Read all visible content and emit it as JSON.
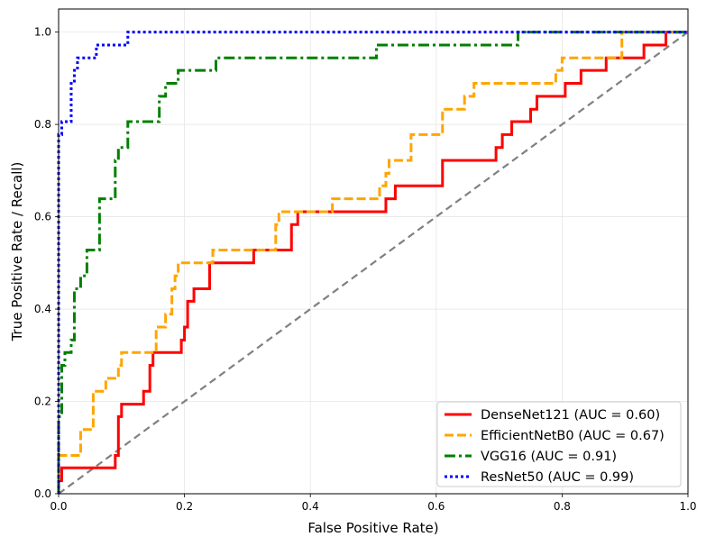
{
  "chart_data": {
    "type": "line",
    "title": "",
    "xlabel": "False Positive Rate)",
    "ylabel": "True Positive Rate / Recall)",
    "xlim": [
      0,
      1
    ],
    "ylim": [
      0,
      1.05
    ],
    "xticks": [
      "0.0",
      "0.2",
      "0.4",
      "0.6",
      "0.8",
      "1.0"
    ],
    "yticks": [
      "0.0",
      "0.2",
      "0.4",
      "0.6",
      "0.8",
      "1.0"
    ],
    "grid": true,
    "legend_position": "lower-right",
    "diagonal": {
      "color": "#808080",
      "style": "dashed",
      "points": [
        [
          0,
          0
        ],
        [
          1,
          1
        ]
      ]
    },
    "series": [
      {
        "name": "DenseNet121 (AUC = 0.60)",
        "color": "#ff0000",
        "style": "solid",
        "x": [
          0,
          0,
          0.005,
          0.005,
          0.045,
          0.045,
          0.09,
          0.09,
          0.095,
          0.095,
          0.1,
          0.1,
          0.135,
          0.135,
          0.145,
          0.145,
          0.15,
          0.15,
          0.195,
          0.195,
          0.2,
          0.2,
          0.205,
          0.205,
          0.215,
          0.215,
          0.24,
          0.24,
          0.31,
          0.31,
          0.37,
          0.37,
          0.38,
          0.38,
          0.39,
          0.39,
          0.52,
          0.52,
          0.535,
          0.535,
          0.61,
          0.61,
          0.695,
          0.695,
          0.705,
          0.705,
          0.72,
          0.72,
          0.735,
          0.735,
          0.75,
          0.75,
          0.76,
          0.76,
          0.805,
          0.805,
          0.815,
          0.815,
          0.83,
          0.83,
          0.87,
          0.87,
          0.93,
          0.93,
          0.965,
          0.965,
          1.0
        ],
        "y": [
          0,
          0.028,
          0.028,
          0.056,
          0.056,
          0.056,
          0.056,
          0.083,
          0.083,
          0.167,
          0.167,
          0.194,
          0.194,
          0.222,
          0.222,
          0.278,
          0.278,
          0.306,
          0.306,
          0.333,
          0.333,
          0.361,
          0.361,
          0.417,
          0.417,
          0.444,
          0.444,
          0.5,
          0.5,
          0.528,
          0.528,
          0.583,
          0.583,
          0.611,
          0.611,
          0.611,
          0.611,
          0.639,
          0.639,
          0.667,
          0.667,
          0.722,
          0.722,
          0.75,
          0.75,
          0.778,
          0.778,
          0.806,
          0.806,
          0.806,
          0.806,
          0.833,
          0.833,
          0.861,
          0.861,
          0.889,
          0.889,
          0.889,
          0.889,
          0.917,
          0.917,
          0.944,
          0.944,
          0.972,
          0.972,
          1.0,
          1.0
        ]
      },
      {
        "name": "EfficientNetB0 (AUC = 0.67)",
        "color": "#ffa500",
        "style": "dashed",
        "x": [
          0,
          0,
          0.035,
          0.035,
          0.055,
          0.055,
          0.075,
          0.075,
          0.095,
          0.095,
          0.1,
          0.1,
          0.155,
          0.155,
          0.17,
          0.17,
          0.18,
          0.18,
          0.185,
          0.185,
          0.19,
          0.19,
          0.245,
          0.245,
          0.345,
          0.345,
          0.35,
          0.35,
          0.435,
          0.435,
          0.51,
          0.51,
          0.52,
          0.52,
          0.525,
          0.525,
          0.56,
          0.56,
          0.61,
          0.61,
          0.645,
          0.645,
          0.66,
          0.66,
          0.79,
          0.79,
          0.8,
          0.8,
          0.895,
          0.895,
          1.0
        ],
        "y": [
          0,
          0.083,
          0.083,
          0.139,
          0.139,
          0.222,
          0.222,
          0.25,
          0.25,
          0.278,
          0.278,
          0.306,
          0.306,
          0.361,
          0.361,
          0.389,
          0.389,
          0.444,
          0.444,
          0.472,
          0.472,
          0.5,
          0.5,
          0.528,
          0.528,
          0.583,
          0.583,
          0.611,
          0.611,
          0.639,
          0.639,
          0.667,
          0.667,
          0.694,
          0.694,
          0.722,
          0.722,
          0.778,
          0.778,
          0.833,
          0.833,
          0.861,
          0.861,
          0.889,
          0.889,
          0.917,
          0.917,
          0.944,
          0.944,
          1.0,
          1.0
        ]
      },
      {
        "name": "VGG16 (AUC = 0.91)",
        "color": "#008000",
        "style": "dashdot",
        "x": [
          0,
          0,
          0.005,
          0.005,
          0.01,
          0.01,
          0.015,
          0.015,
          0.02,
          0.02,
          0.025,
          0.025,
          0.035,
          0.035,
          0.04,
          0.04,
          0.045,
          0.045,
          0.065,
          0.065,
          0.09,
          0.09,
          0.095,
          0.095,
          0.11,
          0.11,
          0.16,
          0.16,
          0.17,
          0.17,
          0.19,
          0.19,
          0.195,
          0.195,
          0.25,
          0.25,
          0.505,
          0.505,
          0.73,
          0.73,
          1.0
        ],
        "y": [
          0,
          0.167,
          0.167,
          0.278,
          0.278,
          0.306,
          0.306,
          0.306,
          0.306,
          0.333,
          0.333,
          0.444,
          0.444,
          0.472,
          0.472,
          0.472,
          0.472,
          0.528,
          0.528,
          0.639,
          0.639,
          0.722,
          0.722,
          0.75,
          0.75,
          0.806,
          0.806,
          0.861,
          0.861,
          0.889,
          0.889,
          0.917,
          0.917,
          0.917,
          0.917,
          0.944,
          0.944,
          0.972,
          0.972,
          1.0,
          1.0
        ]
      },
      {
        "name": "ResNet50 (AUC = 0.99)",
        "color": "#0000ff",
        "style": "dotted",
        "x": [
          0,
          0,
          0.005,
          0.005,
          0.02,
          0.02,
          0.025,
          0.025,
          0.03,
          0.03,
          0.06,
          0.06,
          0.11,
          0.11,
          1.0
        ],
        "y": [
          0,
          0.778,
          0.778,
          0.806,
          0.806,
          0.889,
          0.889,
          0.917,
          0.917,
          0.944,
          0.944,
          0.972,
          0.972,
          1.0,
          1.0
        ]
      }
    ]
  }
}
